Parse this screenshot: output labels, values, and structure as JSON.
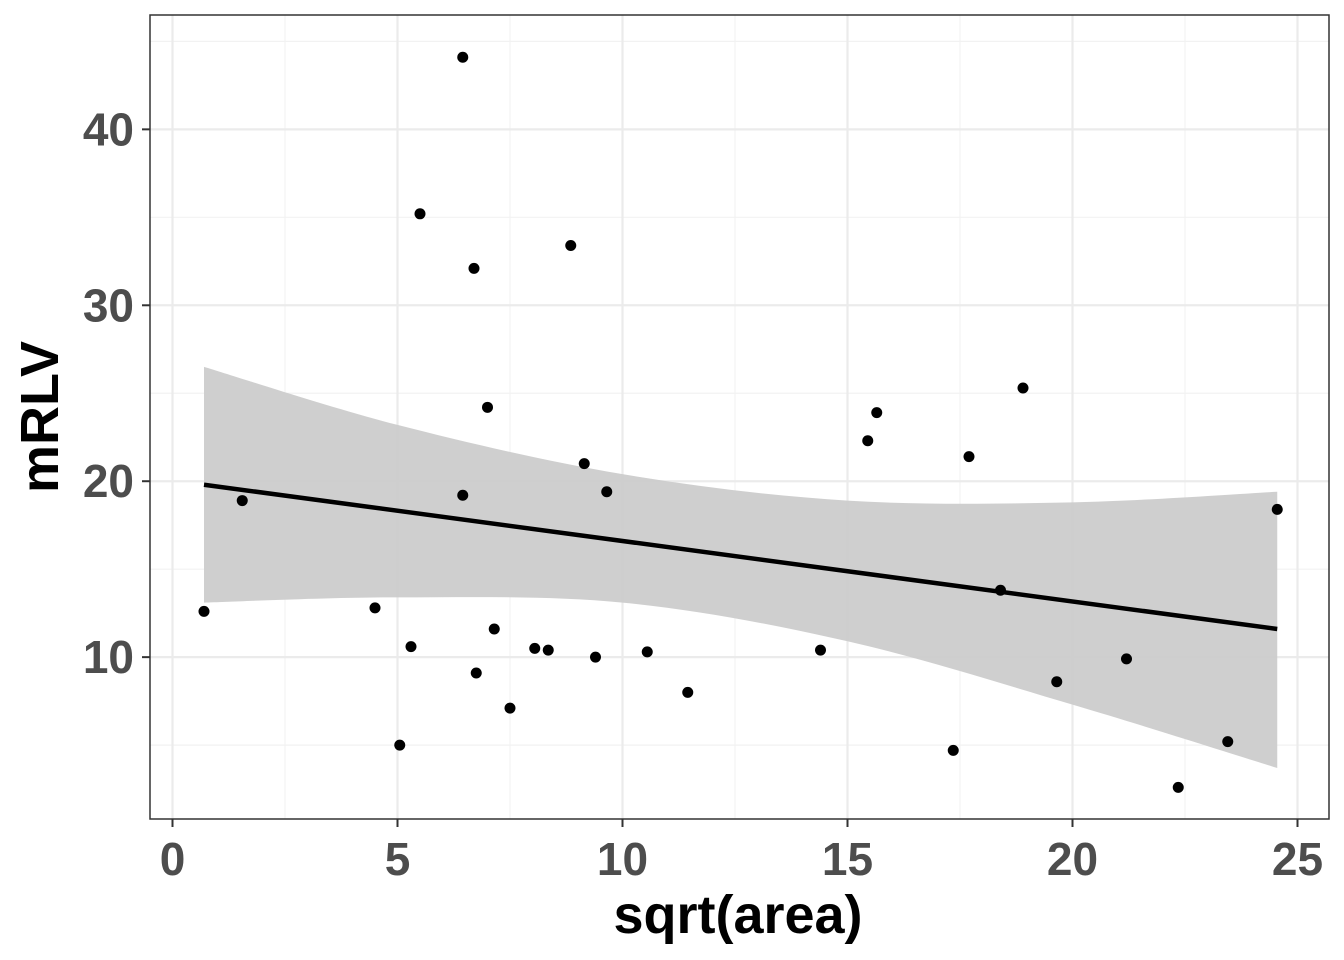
{
  "chart_data": {
    "type": "scatter",
    "title": "",
    "xlabel": "sqrt(area)",
    "ylabel": "mRLV",
    "xlim": [
      -0.5,
      25.7
    ],
    "ylim": [
      0.8,
      46.5
    ],
    "x_ticks": [
      0,
      5,
      10,
      15,
      20,
      25
    ],
    "x_tick_labels": [
      "0",
      "5",
      "10",
      "15",
      "20",
      "25"
    ],
    "y_ticks": [
      10,
      20,
      30,
      40
    ],
    "y_tick_labels": [
      "10",
      "20",
      "30",
      "40"
    ],
    "grid": true,
    "legend": "none",
    "points": {
      "x": [
        0.7,
        1.55,
        4.5,
        5.05,
        5.3,
        5.5,
        6.45,
        6.45,
        6.7,
        6.75,
        7.0,
        7.15,
        7.5,
        8.05,
        8.35,
        8.85,
        9.15,
        9.4,
        9.65,
        10.55,
        11.45,
        14.4,
        15.45,
        15.65,
        17.35,
        17.7,
        18.4,
        18.9,
        19.65,
        21.2,
        22.35,
        23.45,
        24.55
      ],
      "y": [
        12.6,
        18.9,
        12.8,
        5.0,
        10.6,
        35.2,
        44.1,
        19.2,
        32.1,
        9.1,
        24.2,
        11.6,
        7.1,
        10.5,
        10.4,
        33.4,
        21.0,
        10.0,
        19.4,
        10.3,
        8.0,
        10.4,
        22.3,
        23.9,
        4.7,
        21.4,
        13.8,
        25.3,
        8.6,
        9.9,
        2.6,
        5.2,
        18.4
      ],
      "color": "#000000"
    },
    "fit_line": {
      "x": [
        0.7,
        24.55
      ],
      "y": [
        19.8,
        11.6
      ],
      "color": "#000000"
    },
    "confidence_band": {
      "x": [
        0.7,
        5,
        10,
        15,
        20,
        24.55
      ],
      "upper": [
        26.5,
        23.2,
        20.4,
        18.9,
        18.8,
        19.4
      ],
      "lower": [
        13.1,
        13.4,
        13.1,
        10.9,
        7.3,
        3.7
      ],
      "color": "#cccccc"
    },
    "colors": {
      "panel_border": "#333333",
      "grid_major": "#ebebeb",
      "grid_minor": "#f2f2f2",
      "tick_label": "#4d4d4d"
    }
  }
}
